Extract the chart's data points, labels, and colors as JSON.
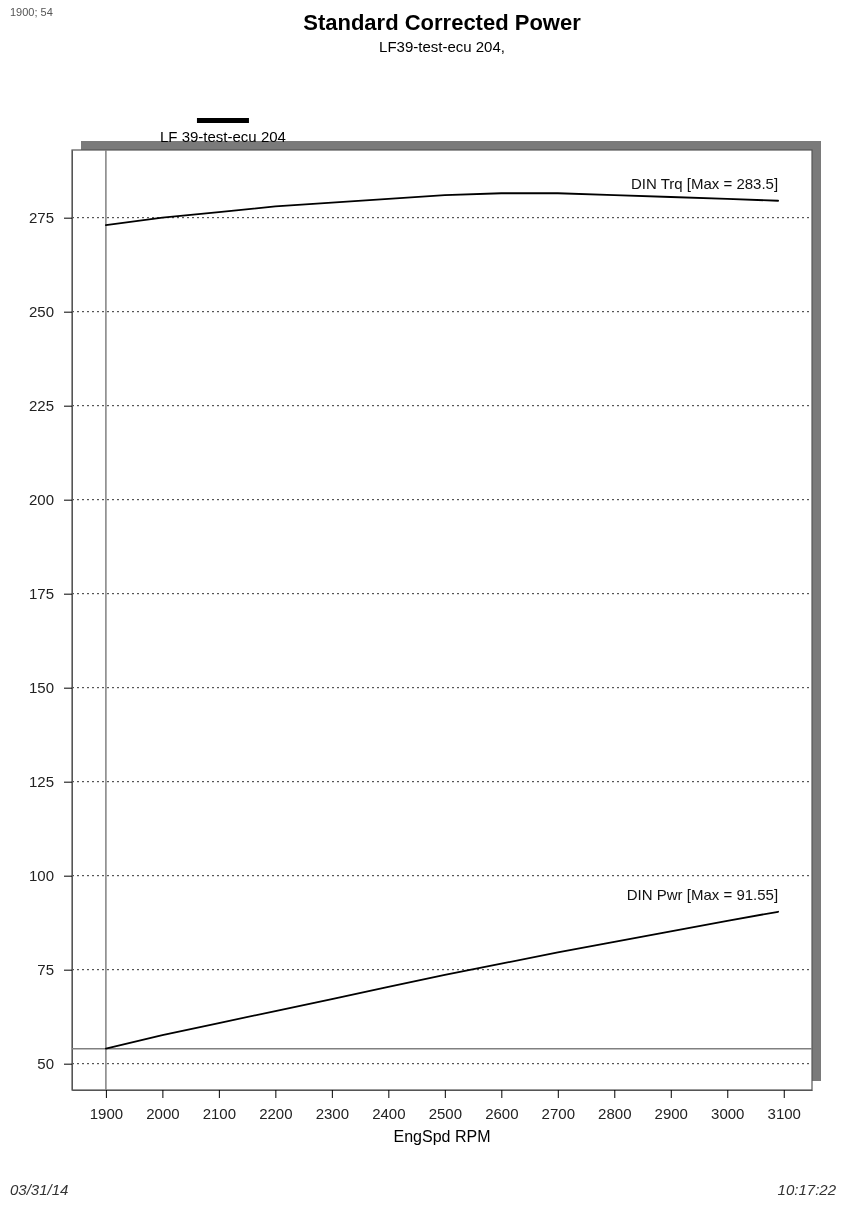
{
  "chart_data": {
    "type": "line",
    "title": "Standard Corrected Power",
    "subtitle": "LF39-test-ecu 204,",
    "xlabel": "EngSpd  RPM",
    "legend_title": "LF 39-test-ecu 204",
    "x": [
      1900,
      2000,
      2100,
      2200,
      2300,
      2400,
      2500,
      2600,
      2700,
      2800,
      2900,
      3000,
      3090
    ],
    "series": [
      {
        "name": "DIN Trq [Max = 283.5]",
        "color": "#000000",
        "values": [
          273,
          275,
          276.5,
          278,
          279,
          280,
          281,
          281.5,
          281.5,
          281,
          280.5,
          280,
          279.5
        ]
      },
      {
        "name": "DIN Pwr [Max = 91.55]",
        "color": "#000000",
        "values": [
          54,
          57.6,
          60.8,
          64,
          67.2,
          70.4,
          73.6,
          76.6,
          79.6,
          82.4,
          85.2,
          88,
          90.4
        ]
      }
    ],
    "xlim": [
      1840,
      3150
    ],
    "xticks": [
      1900,
      2000,
      2100,
      2200,
      2300,
      2400,
      2500,
      2600,
      2700,
      2800,
      2900,
      3000,
      3100
    ],
    "ylim": [
      43,
      293
    ],
    "yticks": [
      50,
      75,
      100,
      125,
      150,
      175,
      200,
      225,
      250,
      275
    ],
    "grid": "y",
    "marker": "none",
    "line_style": "solid",
    "ref_lines": [
      {
        "axis": "x",
        "value": 1900,
        "color": "#808080"
      },
      {
        "axis": "y",
        "value": 54,
        "color": "#808080"
      }
    ],
    "annotations": [
      "1900; 54",
      "03/31/14",
      "10:17:22"
    ]
  }
}
